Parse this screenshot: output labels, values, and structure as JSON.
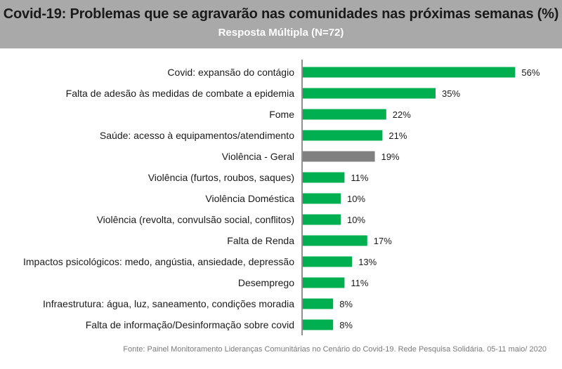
{
  "header": {
    "title": "Covid-19: Problemas que se agravarão nas comunidades nas próximas semanas (%)",
    "subtitle": "Resposta Múltipla (N=72)"
  },
  "source": "Fonte: Painel Monitoramento Lideranças Comunitárias no Cenário do Covid-19. Rede Pesquisa Solidária. 05-11 maio/ 2020",
  "colors": {
    "header_bg": "#a9a9a9",
    "bar_green": "#00b050",
    "bar_gray": "#808080",
    "axis": "#222222"
  },
  "chart_data": {
    "type": "bar",
    "orientation": "horizontal",
    "title": "Covid-19: Problemas que se agravarão nas comunidades nas próximas semanas (%)",
    "subtitle": "Resposta Múltipla (N=72)",
    "categories": [
      "Covid: expansão do contágio",
      "Falta de adesão às medidas de combate a epidemia",
      "Fome",
      "Saúde: acesso à equipamentos/atendimento",
      "Violência - Geral",
      "Violência (furtos, roubos, saques)",
      "Violência Doméstica",
      "Violência (revolta, convulsão social, conflitos)",
      "Falta de Renda",
      "Impactos psicológicos: medo, angústia, ansiedade, depressão",
      "Desemprego",
      "Infraestrutura: água, luz, saneamento, condições moradia",
      "Falta de informação/Desinformação sobre covid"
    ],
    "values": [
      56,
      35,
      22,
      21,
      19,
      11,
      10,
      10,
      17,
      13,
      11,
      8,
      8
    ],
    "value_labels": [
      "56%",
      "35%",
      "22%",
      "21%",
      "19%",
      "11%",
      "10%",
      "10%",
      "17%",
      "13%",
      "11%",
      "8%",
      "8%"
    ],
    "highlight_index": 4,
    "xlim": [
      0,
      60
    ],
    "grid": false,
    "legend": "none"
  }
}
